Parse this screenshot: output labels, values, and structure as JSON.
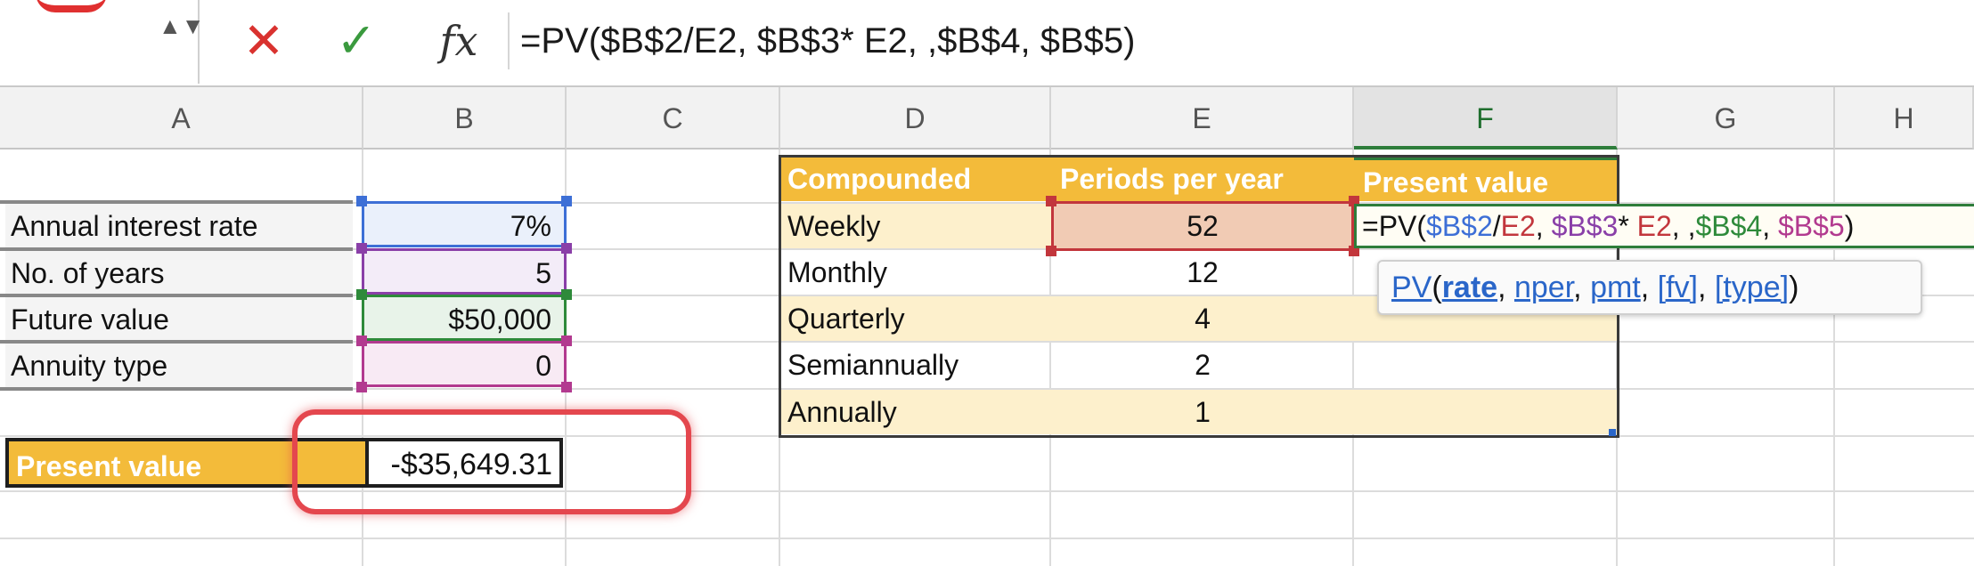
{
  "formula_bar": {
    "formula": "=PV($B$2/E2, $B$3* E2, ,$B$4, $B$5)",
    "cancel_icon": "✕",
    "confirm_icon": "✓",
    "fx_label": "fx",
    "spinner_icon": "▲▼"
  },
  "columns": [
    "A",
    "B",
    "C",
    "D",
    "E",
    "F",
    "G",
    "H"
  ],
  "inputs": {
    "rows": [
      {
        "label": "Annual interest rate",
        "value": "7%"
      },
      {
        "label": "No. of years",
        "value": "5"
      },
      {
        "label": "Future value",
        "value": "$50,000"
      },
      {
        "label": "Annuity type",
        "value": "0"
      }
    ],
    "present_value_label": "Present value",
    "present_value": "-$35,649.31"
  },
  "table": {
    "headers": [
      "Compounded",
      "Periods per year",
      "Present value"
    ],
    "rows": [
      {
        "compounded": "Weekly",
        "periods": "52"
      },
      {
        "compounded": "Monthly",
        "periods": "12"
      },
      {
        "compounded": "Quarterly",
        "periods": "4"
      },
      {
        "compounded": "Semiannually",
        "periods": "2"
      },
      {
        "compounded": "Annually",
        "periods": "1"
      }
    ]
  },
  "editing_formula_parts": [
    "=PV(",
    "$B$2",
    "/",
    "E2",
    ", ",
    "$B$3",
    "* ",
    "E2",
    ", ,",
    "$B$4",
    ", ",
    "$B$5",
    ")"
  ],
  "tooltip": {
    "func": "PV",
    "open": "(",
    "args": [
      "rate",
      "nper",
      "pmt",
      "[fv]",
      "[type]"
    ],
    "sep": ", ",
    "close": ")"
  },
  "colors": {
    "accent_yellow": "#f3bb3a",
    "band_yellow": "#fdf0cc",
    "ref_blue": "#3d6fd6",
    "ref_purple": "#8a3fa8",
    "ref_green": "#2e8a3a",
    "ref_magenta": "#b23a8f",
    "ref_red": "#c2363c",
    "highlight_red": "#e4474e"
  }
}
